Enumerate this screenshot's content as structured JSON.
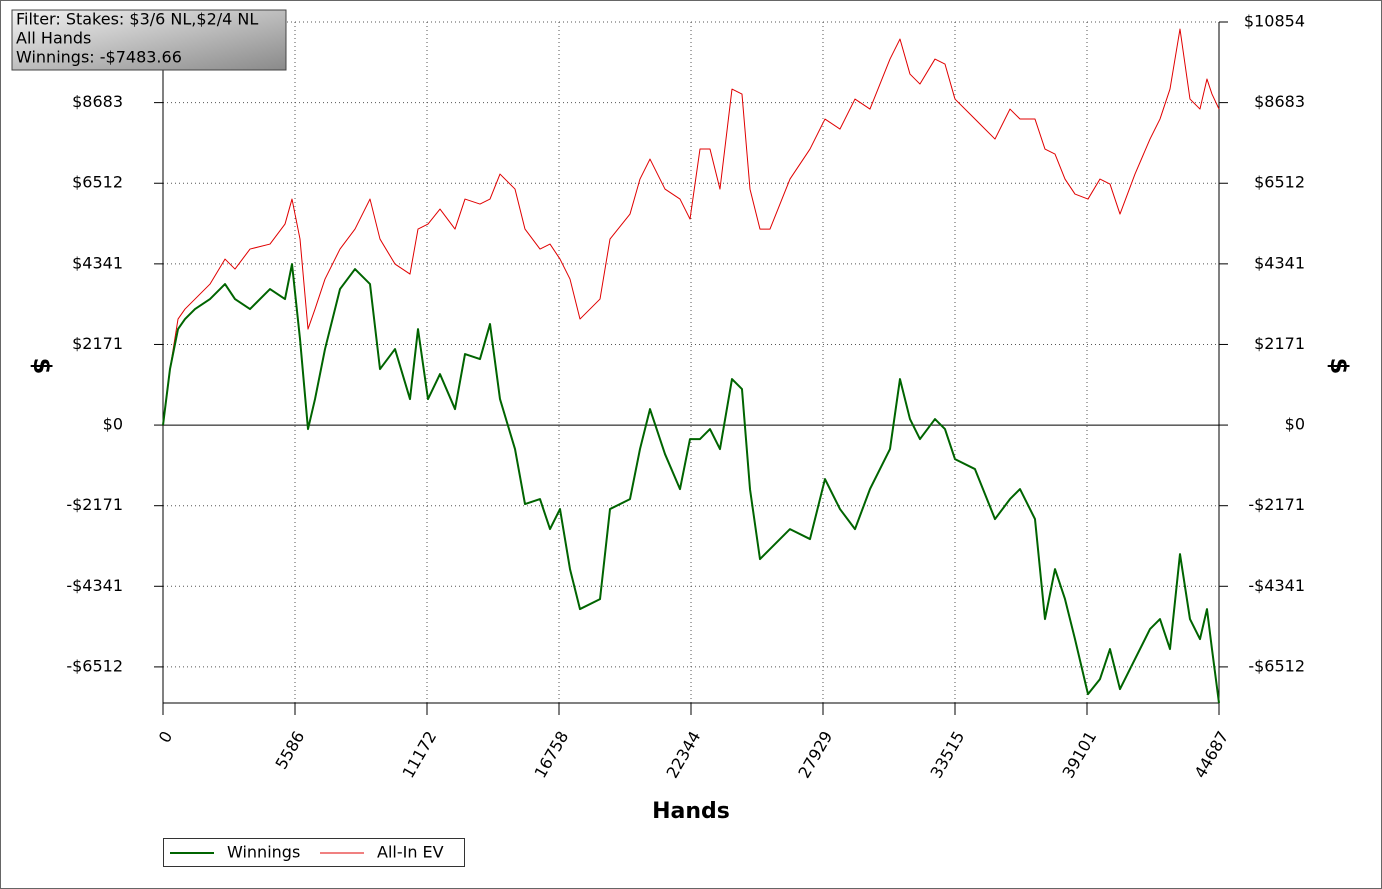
{
  "chart_data": {
    "type": "line",
    "annotations": [
      "Filter: Stakes: $3/6 NL,$2/4 NL",
      "All Hands",
      "Winnings: -$7483.66"
    ],
    "x_label": "Hands",
    "y_label": "$",
    "y2_label": "$",
    "xlim": [
      0,
      44687
    ],
    "xticks": [
      0,
      5586,
      11172,
      16758,
      22344,
      27929,
      33515,
      39101,
      44687
    ],
    "ylim": [
      -7484,
      10854
    ],
    "yticks": [
      {
        "value": -6512,
        "label": "-$6512"
      },
      {
        "value": -4341,
        "label": "-$4341"
      },
      {
        "value": -2171,
        "label": "-$2171"
      },
      {
        "value": 0,
        "label": "$0"
      },
      {
        "value": 2171,
        "label": "$2171"
      },
      {
        "value": 4341,
        "label": "$4341"
      },
      {
        "value": 6512,
        "label": "$6512"
      },
      {
        "value": 8683,
        "label": "$8683"
      },
      {
        "value": 10854,
        "label": "$10854"
      }
    ],
    "grid": true,
    "x": [
      0,
      296,
      635,
      931,
      1354,
      1989,
      2624,
      3047,
      3682,
      4528,
      5163,
      5459,
      5798,
      6136,
      6433,
      6856,
      7490,
      8125,
      8760,
      9183,
      9818,
      10452,
      10791,
      11214,
      11722,
      12357,
      12780,
      13414,
      13838,
      14261,
      14896,
      15319,
      15954,
      16377,
      16800,
      17223,
      17646,
      18493,
      18916,
      19762,
      20185,
      20608,
      21243,
      21878,
      22301,
      22724,
      23147,
      23570,
      24078,
      24501,
      24840,
      25263,
      25686,
      26532,
      27379,
      28013,
      28648,
      29283,
      29917,
      30764,
      31187,
      31610,
      32033,
      32668,
      33091,
      33514,
      34360,
      35208,
      35842,
      36266,
      36900,
      37323,
      37747,
      38170,
      38593,
      39143,
      39651,
      40074,
      40497,
      41132,
      41767,
      42190,
      42613,
      43036,
      43459,
      43882,
      44178,
      44390,
      44687
    ],
    "series": [
      {
        "name": "Winnings",
        "color": "#006400",
        "width": 2,
        "values": [
          0,
          1508,
          2585,
          2855,
          3124,
          3393,
          3797,
          3393,
          3124,
          3662,
          3393,
          4336,
          2316,
          -108,
          700,
          2047,
          3662,
          4201,
          3797,
          1508,
          2047,
          700,
          2585,
          700,
          1373,
          431,
          1912,
          1777,
          2720,
          700,
          -646,
          -2127,
          -1993,
          -2801,
          -2262,
          -3878,
          -4955,
          -4686,
          -2262,
          -1993,
          -646,
          431,
          -781,
          -1724,
          -377,
          -377,
          -108,
          -646,
          1239,
          969,
          -1724,
          -3609,
          -3339,
          -2801,
          -3070,
          -1454,
          -2262,
          -2801,
          -1724,
          -646,
          1239,
          162,
          -377,
          162,
          -108,
          -916,
          -1185,
          -2531,
          -1993,
          -1724,
          -2531,
          -5224,
          -3878,
          -4686,
          -5763,
          -7244,
          -6840,
          -6032,
          -7109,
          -6302,
          -5494,
          -5224,
          -6032,
          -3474,
          -5224,
          -5763,
          -4955,
          -6032,
          -7483.66
        ]
      },
      {
        "name": "All-In EV",
        "color": "#e00000",
        "width": 1,
        "values": [
          0,
          1508,
          2855,
          3124,
          3393,
          3797,
          4470,
          4201,
          4740,
          4874,
          5413,
          6086,
          5009,
          2585,
          3124,
          3932,
          4740,
          5278,
          6086,
          5009,
          4336,
          4067,
          5278,
          5413,
          5817,
          5278,
          6086,
          5952,
          6086,
          6759,
          6355,
          5278,
          4740,
          4874,
          4470,
          3932,
          2855,
          3393,
          5009,
          5682,
          6625,
          7163,
          6355,
          6086,
          5548,
          7433,
          7433,
          6355,
          9048,
          8914,
          6355,
          5278,
          5278,
          6625,
          7433,
          8241,
          7971,
          8779,
          8510,
          9856,
          10395,
          9452,
          9183,
          9856,
          9722,
          8779,
          8241,
          7702,
          8510,
          8241,
          8241,
          7433,
          7298,
          6625,
          6221,
          6086,
          6625,
          6490,
          5682,
          6759,
          7702,
          8241,
          9048,
          10664,
          8779,
          8510,
          9318,
          8914,
          8510
        ]
      }
    ]
  }
}
